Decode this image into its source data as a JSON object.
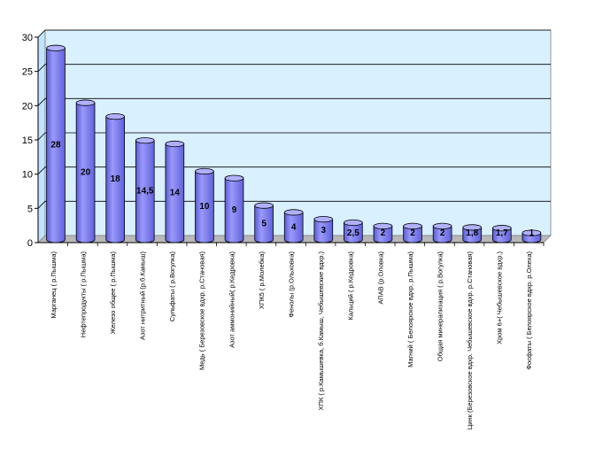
{
  "chart_data": {
    "type": "bar",
    "style": "3d-cylinder",
    "categories": [
      "Марганец ( р.Пышма)",
      "Нефтепродукты ( р.Пышма)",
      "Железо общее ( р.Пышма)",
      "Азот нитритный (р.б.Камыш)",
      "Сульфаты ( р.Вогулка)",
      "Медь ( Березовское вдхр. р.Становая)",
      "Азот аммонийный( р.Кедровка)",
      "ХПК5 ( р.Молебка)",
      "Фенолы (р.Ольховка)",
      "ХПК ( р.Камышевка, б.Камыш, Чебышевские вдхр.)",
      "Кальций ( р.Кедровка)",
      "АПАВ (р.Оловка)",
      "Магний ( Белоярское вдхр. р.Пышма)",
      "Общая минерализация ( р.Вогулка)",
      "Цинк (Березовское вдхр. Чебышевское вдхр. р.Становая)",
      "Хром 6+( Чебышевское вдхр.)",
      "Фосфаты ( Белоярское вдхр. р.Олеха)"
    ],
    "values": [
      28,
      20,
      18,
      14.5,
      14,
      10,
      9,
      5,
      4,
      3,
      2.5,
      2,
      2,
      2,
      1.8,
      1.7,
      1
    ],
    "data_labels": [
      "28",
      "20",
      "18",
      "14,5",
      "14",
      "10",
      "9",
      "5",
      "4",
      "3",
      "2,5",
      "2",
      "2",
      "2",
      "1,8",
      "1,7",
      "1"
    ],
    "yticks": [
      "0",
      "5",
      "10",
      "15",
      "20",
      "25",
      "30"
    ],
    "ylim": [
      0,
      30
    ],
    "grid": true,
    "legend": "none",
    "colors": {
      "bar_fill": "#8080f0",
      "bar_top": "#b0b0ff",
      "bar_stroke": "#000000",
      "plot_bg": "#d9f0ff",
      "wall_bg": "#c0e4ff",
      "grid": "#000000"
    }
  }
}
